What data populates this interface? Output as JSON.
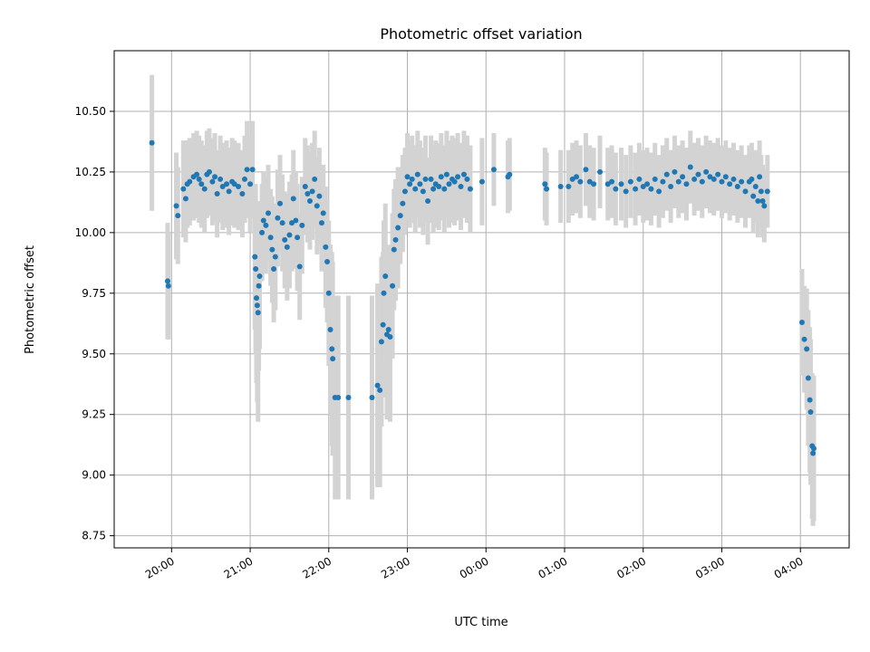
{
  "chart_data": {
    "type": "scatter",
    "title": "Photometric offset variation",
    "xlabel": "UTC time",
    "ylabel": "Photometric offset",
    "x_unit": "hours after 20:00 UTC",
    "xlim": [
      -0.73,
      8.62
    ],
    "ylim": [
      8.7,
      10.75
    ],
    "grid": true,
    "legend": "none",
    "colors": {
      "points": "#1f77b4",
      "errorbars": "#d3d3d3",
      "grid": "#b0b0b0"
    },
    "x_ticks": [
      {
        "x": 0,
        "label": "20:00"
      },
      {
        "x": 1,
        "label": "21:00"
      },
      {
        "x": 2,
        "label": "22:00"
      },
      {
        "x": 3,
        "label": "23:00"
      },
      {
        "x": 4,
        "label": "00:00"
      },
      {
        "x": 5,
        "label": "01:00"
      },
      {
        "x": 6,
        "label": "02:00"
      },
      {
        "x": 7,
        "label": "03:00"
      },
      {
        "x": 8,
        "label": "04:00"
      }
    ],
    "y_ticks": [
      {
        "y": 8.75,
        "label": "8.75"
      },
      {
        "y": 9.0,
        "label": "9.00"
      },
      {
        "y": 9.25,
        "label": "9.25"
      },
      {
        "y": 9.5,
        "label": "9.50"
      },
      {
        "y": 9.75,
        "label": "9.75"
      },
      {
        "y": 10.0,
        "label": "10.00"
      },
      {
        "y": 10.25,
        "label": "10.25"
      },
      {
        "y": 10.5,
        "label": "10.50"
      }
    ],
    "series": [
      {
        "points": [
          [
            -0.25,
            10.37,
            0.28
          ],
          [
            -0.05,
            9.8,
            0.24
          ],
          [
            -0.04,
            9.78,
            0.22
          ],
          [
            0.06,
            10.11,
            0.22
          ],
          [
            0.08,
            10.07,
            0.2
          ],
          [
            0.15,
            10.18,
            0.2
          ],
          [
            0.18,
            10.14,
            0.18
          ],
          [
            0.2,
            10.2,
            0.18
          ],
          [
            0.23,
            10.21,
            0.18
          ],
          [
            0.28,
            10.23,
            0.18
          ],
          [
            0.32,
            10.24,
            0.18
          ],
          [
            0.35,
            10.22,
            0.18
          ],
          [
            0.38,
            10.2,
            0.18
          ],
          [
            0.42,
            10.18,
            0.18
          ],
          [
            0.45,
            10.24,
            0.18
          ],
          [
            0.48,
            10.25,
            0.18
          ],
          [
            0.52,
            10.21,
            0.18
          ],
          [
            0.55,
            10.23,
            0.18
          ],
          [
            0.58,
            10.16,
            0.18
          ],
          [
            0.62,
            10.22,
            0.18
          ],
          [
            0.65,
            10.19,
            0.18
          ],
          [
            0.7,
            10.2,
            0.18
          ],
          [
            0.73,
            10.17,
            0.18
          ],
          [
            0.77,
            10.21,
            0.18
          ],
          [
            0.8,
            10.2,
            0.18
          ],
          [
            0.85,
            10.19,
            0.18
          ],
          [
            0.9,
            10.16,
            0.18
          ],
          [
            0.93,
            10.22,
            0.18
          ],
          [
            0.96,
            10.26,
            0.2
          ],
          [
            1.0,
            10.2,
            0.2
          ],
          [
            1.03,
            10.26,
            0.2
          ],
          [
            1.06,
            9.9,
            0.3
          ],
          [
            1.07,
            9.85,
            0.35
          ],
          [
            1.08,
            9.73,
            0.35
          ],
          [
            1.09,
            9.7,
            0.4
          ],
          [
            1.1,
            9.67,
            0.45
          ],
          [
            1.11,
            9.78,
            0.35
          ],
          [
            1.12,
            9.82,
            0.3
          ],
          [
            1.15,
            10.0,
            0.2
          ],
          [
            1.17,
            10.05,
            0.2
          ],
          [
            1.2,
            10.03,
            0.2
          ],
          [
            1.23,
            10.08,
            0.2
          ],
          [
            1.26,
            9.98,
            0.2
          ],
          [
            1.28,
            9.93,
            0.22
          ],
          [
            1.3,
            9.85,
            0.22
          ],
          [
            1.32,
            9.9,
            0.22
          ],
          [
            1.35,
            10.06,
            0.2
          ],
          [
            1.38,
            10.12,
            0.2
          ],
          [
            1.41,
            10.04,
            0.2
          ],
          [
            1.44,
            9.97,
            0.2
          ],
          [
            1.47,
            9.94,
            0.22
          ],
          [
            1.5,
            9.99,
            0.22
          ],
          [
            1.53,
            10.04,
            0.2
          ],
          [
            1.55,
            10.14,
            0.2
          ],
          [
            1.58,
            10.05,
            0.2
          ],
          [
            1.6,
            9.98,
            0.22
          ],
          [
            1.63,
            9.86,
            0.22
          ],
          [
            1.66,
            10.03,
            0.2
          ],
          [
            1.7,
            10.19,
            0.2
          ],
          [
            1.73,
            10.16,
            0.2
          ],
          [
            1.76,
            10.13,
            0.2
          ],
          [
            1.79,
            10.17,
            0.2
          ],
          [
            1.82,
            10.22,
            0.2
          ],
          [
            1.85,
            10.11,
            0.2
          ],
          [
            1.88,
            10.15,
            0.2
          ],
          [
            1.91,
            10.04,
            0.2
          ],
          [
            1.93,
            10.08,
            0.2
          ],
          [
            1.96,
            9.94,
            0.25
          ],
          [
            1.98,
            9.88,
            0.25
          ],
          [
            2.0,
            9.75,
            0.3
          ],
          [
            2.02,
            9.6,
            0.35
          ],
          [
            2.04,
            9.52,
            0.4
          ],
          [
            2.05,
            9.48,
            0.4
          ],
          [
            2.08,
            9.32,
            0.42
          ],
          [
            2.12,
            9.32,
            0.42
          ],
          [
            2.25,
            9.32,
            0.42
          ],
          [
            2.55,
            9.32,
            0.42
          ],
          [
            2.62,
            9.37,
            0.42
          ],
          [
            2.65,
            9.35,
            0.4
          ],
          [
            2.67,
            9.55,
            0.35
          ],
          [
            2.69,
            9.62,
            0.3
          ],
          [
            2.7,
            9.75,
            0.3
          ],
          [
            2.72,
            9.82,
            0.3
          ],
          [
            2.74,
            9.58,
            0.35
          ],
          [
            2.76,
            9.6,
            0.35
          ],
          [
            2.78,
            9.57,
            0.35
          ],
          [
            2.81,
            9.78,
            0.3
          ],
          [
            2.83,
            9.93,
            0.25
          ],
          [
            2.85,
            9.97,
            0.25
          ],
          [
            2.88,
            10.02,
            0.25
          ],
          [
            2.91,
            10.07,
            0.2
          ],
          [
            2.94,
            10.12,
            0.2
          ],
          [
            2.97,
            10.17,
            0.18
          ],
          [
            3.0,
            10.23,
            0.18
          ],
          [
            3.03,
            10.2,
            0.18
          ],
          [
            3.06,
            10.22,
            0.18
          ],
          [
            3.1,
            10.18,
            0.18
          ],
          [
            3.13,
            10.24,
            0.18
          ],
          [
            3.16,
            10.2,
            0.18
          ],
          [
            3.2,
            10.17,
            0.18
          ],
          [
            3.23,
            10.22,
            0.18
          ],
          [
            3.26,
            10.13,
            0.18
          ],
          [
            3.3,
            10.22,
            0.18
          ],
          [
            3.33,
            10.18,
            0.18
          ],
          [
            3.36,
            10.2,
            0.18
          ],
          [
            3.4,
            10.19,
            0.18
          ],
          [
            3.43,
            10.23,
            0.18
          ],
          [
            3.47,
            10.18,
            0.18
          ],
          [
            3.5,
            10.24,
            0.18
          ],
          [
            3.53,
            10.2,
            0.18
          ],
          [
            3.57,
            10.22,
            0.18
          ],
          [
            3.6,
            10.21,
            0.18
          ],
          [
            3.64,
            10.23,
            0.18
          ],
          [
            3.68,
            10.19,
            0.18
          ],
          [
            3.72,
            10.24,
            0.18
          ],
          [
            3.76,
            10.22,
            0.18
          ],
          [
            3.8,
            10.18,
            0.18
          ],
          [
            3.95,
            10.21,
            0.18
          ],
          [
            4.1,
            10.26,
            0.15
          ],
          [
            4.28,
            10.23,
            0.15
          ],
          [
            4.3,
            10.24,
            0.15
          ],
          [
            4.75,
            10.2,
            0.15
          ],
          [
            4.77,
            10.18,
            0.15
          ],
          [
            4.95,
            10.19,
            0.15
          ],
          [
            5.05,
            10.19,
            0.15
          ],
          [
            5.1,
            10.22,
            0.15
          ],
          [
            5.15,
            10.23,
            0.15
          ],
          [
            5.2,
            10.21,
            0.15
          ],
          [
            5.27,
            10.26,
            0.15
          ],
          [
            5.32,
            10.21,
            0.15
          ],
          [
            5.37,
            10.2,
            0.15
          ],
          [
            5.45,
            10.25,
            0.15
          ],
          [
            5.55,
            10.2,
            0.15
          ],
          [
            5.6,
            10.21,
            0.15
          ],
          [
            5.65,
            10.18,
            0.15
          ],
          [
            5.72,
            10.2,
            0.15
          ],
          [
            5.78,
            10.17,
            0.15
          ],
          [
            5.84,
            10.21,
            0.15
          ],
          [
            5.9,
            10.18,
            0.15
          ],
          [
            5.95,
            10.22,
            0.15
          ],
          [
            6.0,
            10.19,
            0.15
          ],
          [
            6.05,
            10.2,
            0.15
          ],
          [
            6.1,
            10.18,
            0.15
          ],
          [
            6.15,
            10.22,
            0.15
          ],
          [
            6.2,
            10.17,
            0.15
          ],
          [
            6.25,
            10.21,
            0.15
          ],
          [
            6.3,
            10.24,
            0.15
          ],
          [
            6.35,
            10.19,
            0.15
          ],
          [
            6.4,
            10.25,
            0.15
          ],
          [
            6.45,
            10.21,
            0.15
          ],
          [
            6.5,
            10.23,
            0.15
          ],
          [
            6.55,
            10.2,
            0.15
          ],
          [
            6.6,
            10.27,
            0.15
          ],
          [
            6.65,
            10.22,
            0.15
          ],
          [
            6.7,
            10.24,
            0.15
          ],
          [
            6.75,
            10.21,
            0.15
          ],
          [
            6.8,
            10.25,
            0.15
          ],
          [
            6.85,
            10.23,
            0.15
          ],
          [
            6.9,
            10.22,
            0.15
          ],
          [
            6.95,
            10.24,
            0.15
          ],
          [
            7.0,
            10.21,
            0.15
          ],
          [
            7.05,
            10.23,
            0.15
          ],
          [
            7.1,
            10.2,
            0.15
          ],
          [
            7.15,
            10.22,
            0.15
          ],
          [
            7.2,
            10.19,
            0.15
          ],
          [
            7.25,
            10.21,
            0.15
          ],
          [
            7.3,
            10.17,
            0.15
          ],
          [
            7.35,
            10.21,
            0.15
          ],
          [
            7.38,
            10.22,
            0.15
          ],
          [
            7.4,
            10.15,
            0.15
          ],
          [
            7.43,
            10.19,
            0.15
          ],
          [
            7.46,
            10.13,
            0.15
          ],
          [
            7.48,
            10.23,
            0.15
          ],
          [
            7.5,
            10.17,
            0.15
          ],
          [
            7.52,
            10.13,
            0.15
          ],
          [
            7.54,
            10.11,
            0.15
          ],
          [
            7.58,
            10.17,
            0.15
          ],
          [
            8.02,
            9.63,
            0.22
          ],
          [
            8.05,
            9.56,
            0.22
          ],
          [
            8.08,
            9.52,
            0.25
          ],
          [
            8.1,
            9.4,
            0.28
          ],
          [
            8.12,
            9.31,
            0.3
          ],
          [
            8.13,
            9.26,
            0.3
          ],
          [
            8.15,
            9.12,
            0.3
          ],
          [
            8.16,
            9.09,
            0.3
          ],
          [
            8.17,
            9.11,
            0.3
          ]
        ]
      }
    ]
  }
}
